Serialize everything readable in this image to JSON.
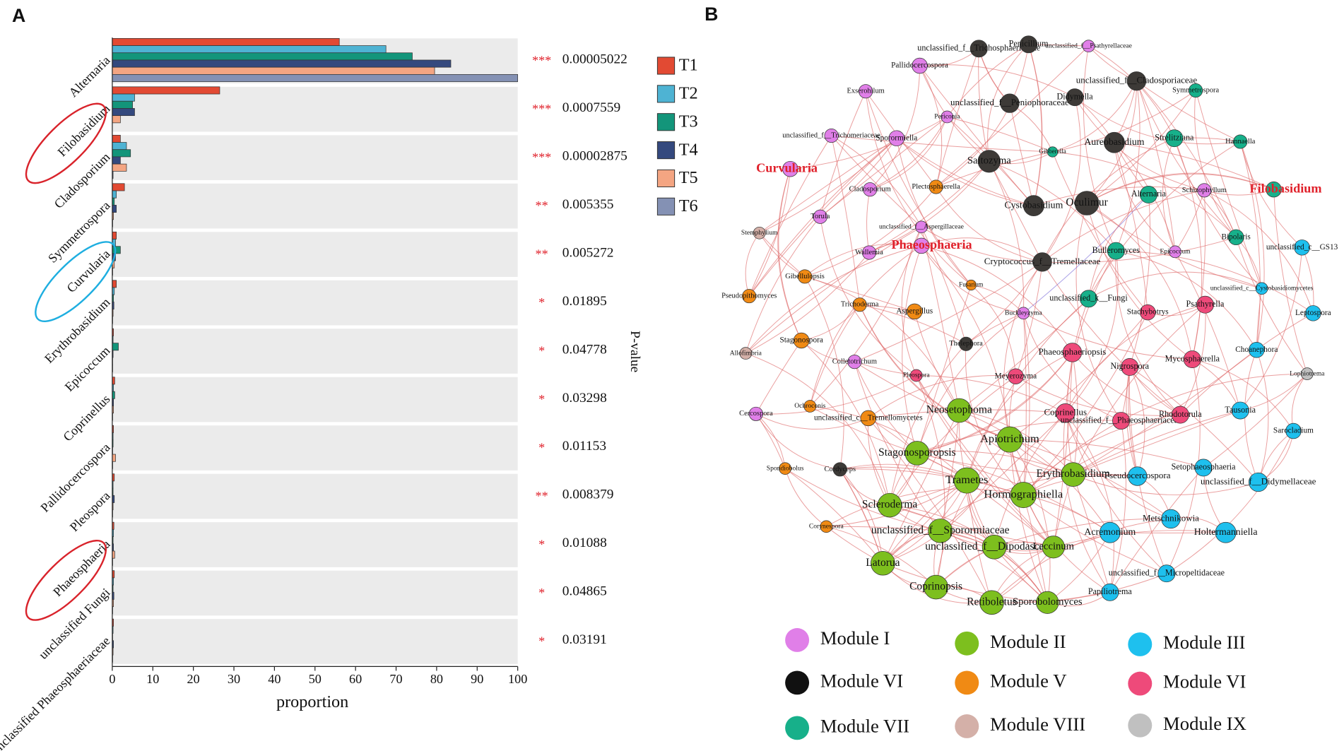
{
  "chart_data": {
    "type": "bar",
    "orientation": "horizontal",
    "panel_label": "A",
    "categories": [
      "Alternaria",
      "Filobasidium",
      "Cladosporium",
      "Symmetrospora",
      "Curvularia",
      "Erythrobasidium",
      "Epicoccum",
      "Coprinellus",
      "Pallidocercospora",
      "Pleospora",
      "Phaeosphaeria",
      "unclassified Fungi",
      "unclassified Phaeosphaeriaceae"
    ],
    "series": [
      {
        "name": "T1",
        "color": "#e24a33",
        "values": [
          56,
          26.5,
          2,
          3,
          1,
          1,
          0.3,
          0.6,
          0.3,
          0.5,
          0.4,
          0.5,
          0.3
        ]
      },
      {
        "name": "T2",
        "color": "#4eb3d3",
        "values": [
          67.5,
          5.5,
          3.5,
          1,
          0.8,
          0.5,
          0.2,
          0.3,
          0.2,
          0.2,
          0.3,
          0.3,
          0.2
        ]
      },
      {
        "name": "T3",
        "color": "#13957a",
        "values": [
          74,
          5,
          4.5,
          0.5,
          2,
          0.3,
          1.5,
          0.6,
          0.2,
          0.2,
          0.2,
          0.2,
          0.1
        ]
      },
      {
        "name": "T4",
        "color": "#34497e",
        "values": [
          83.5,
          5.5,
          2,
          1,
          0.8,
          0.4,
          0.2,
          0.3,
          0.1,
          0.5,
          0.3,
          0.4,
          0.3
        ]
      },
      {
        "name": "T5",
        "color": "#f4a582",
        "values": [
          79.5,
          2,
          3.5,
          0.3,
          0.5,
          0.2,
          0.1,
          0.3,
          0.8,
          0.2,
          0.6,
          0.3,
          0.2
        ]
      },
      {
        "name": "T6",
        "color": "#8491b4",
        "values": [
          100,
          0,
          0.2,
          0.1,
          0.1,
          0.1,
          0.1,
          0.1,
          0.1,
          0.1,
          0.1,
          0.1,
          0.1
        ]
      }
    ],
    "xlim": [
      0,
      100
    ],
    "xticks": [
      0,
      10,
      20,
      30,
      40,
      50,
      60,
      70,
      80,
      90,
      100
    ],
    "xlabel": "proportion",
    "p_value_label": "P-value",
    "significance": [
      "***",
      "***",
      "***",
      "**",
      "**",
      "*",
      "*",
      "*",
      "*",
      "**",
      "*",
      "*",
      "*"
    ],
    "p_values": [
      "0.00005022",
      "0.0007559",
      "0.00002875",
      "0.005355",
      "0.005272",
      "0.01895",
      "0.04778",
      "0.03298",
      "0.01153",
      "0.008379",
      "0.01088",
      "0.04865",
      "0.03191"
    ]
  },
  "network": {
    "panel_label": "B",
    "legend": [
      {
        "name": "Module I",
        "color": "#e07fe8"
      },
      {
        "name": "Module II",
        "color": "#7dbf1e"
      },
      {
        "name": "Module III",
        "color": "#1ec0ee"
      },
      {
        "name": "Module VI",
        "color": "#111111"
      },
      {
        "name": "Module V",
        "color": "#f08a14"
      },
      {
        "name": "Module VI",
        "color": "#ee4a7a"
      },
      {
        "name": "Module VII",
        "color": "#17b08a"
      },
      {
        "name": "Module VIII",
        "color": "#d4b0a8"
      },
      {
        "name": "Module IX",
        "color": "#c0c0c0"
      }
    ],
    "nodes": [
      {
        "label": "Pallidocercospora",
        "color": "#e07fe8"
      },
      {
        "label": "unclassified_f__Trichosphaeriaceae",
        "color": "#3d3a37"
      },
      {
        "label": "Penicillium",
        "color": "#3d3a37"
      },
      {
        "label": "unclassified_f__Psathyrellaceae",
        "color": "#e07fe8"
      },
      {
        "label": "Exserohilum",
        "color": "#e07fe8"
      },
      {
        "label": "unclassified_f__Cladosporiaceae",
        "color": "#3d3a37"
      },
      {
        "label": "Symmetrospora",
        "color": "#17b08a"
      },
      {
        "label": "unclassified_f__Peniophoraceae",
        "color": "#3d3a37"
      },
      {
        "label": "Didymella",
        "color": "#3d3a37"
      },
      {
        "label": "Periconia",
        "color": "#e07fe8"
      },
      {
        "label": "unclassified_f__Trichomeriaceae",
        "color": "#e07fe8"
      },
      {
        "label": "Sporormiella",
        "color": "#e07fe8"
      },
      {
        "label": "Aureobasidium",
        "color": "#3d3a37"
      },
      {
        "label": "Strelitziana",
        "color": "#17b08a"
      },
      {
        "label": "Hannaella",
        "color": "#17b08a"
      },
      {
        "label": "Gibberella",
        "color": "#17b08a"
      },
      {
        "label": "Curvularia",
        "color": "#e07fe8"
      },
      {
        "label": "Saitozyma",
        "color": "#3d3a37"
      },
      {
        "label": "Plectosphaerella",
        "color": "#f08a14"
      },
      {
        "label": "Cladosporium",
        "color": "#e07fe8"
      },
      {
        "label": "Cystobasidium",
        "color": "#3d3a37"
      },
      {
        "label": "Oculimur",
        "color": "#3d3a37"
      },
      {
        "label": "Alternaria",
        "color": "#17b08a"
      },
      {
        "label": "Schizophyllum",
        "color": "#e07fe8"
      },
      {
        "label": "Filobasidium",
        "color": "#17b08a"
      },
      {
        "label": "Torula",
        "color": "#e07fe8"
      },
      {
        "label": "unclassified_f__Aspergillaceae",
        "color": "#e07fe8"
      },
      {
        "label": "Stemphylium",
        "color": "#d4b0a8"
      },
      {
        "label": "Bipolaris",
        "color": "#17b08a"
      },
      {
        "label": "Wallemia",
        "color": "#e07fe8"
      },
      {
        "label": "Phaeosphaeria",
        "color": "#e07fe8"
      },
      {
        "label": "Bulleromyces",
        "color": "#17b08a"
      },
      {
        "label": "Epicoccum",
        "color": "#e07fe8"
      },
      {
        "label": "unclassified_c__GS13",
        "color": "#1ec0ee"
      },
      {
        "label": "Cryptococcus_f__Tremellaceae",
        "color": "#3d3a37"
      },
      {
        "label": "Gibellulopsis",
        "color": "#f08a14"
      },
      {
        "label": "Fusarium",
        "color": "#f08a14"
      },
      {
        "label": "unclassified_c__Cystobasidiomycetes",
        "color": "#1ec0ee"
      },
      {
        "label": "Pseudopithomyces",
        "color": "#f08a14"
      },
      {
        "label": "unclassified_k__Fungi",
        "color": "#17b08a"
      },
      {
        "label": "Trichoderma",
        "color": "#f08a14"
      },
      {
        "label": "Aspergillus",
        "color": "#f08a14"
      },
      {
        "label": "Buckleyzyma",
        "color": "#e07fe8"
      },
      {
        "label": "Stachybotrys",
        "color": "#ee4a7a"
      },
      {
        "label": "Psathyrella",
        "color": "#ee4a7a"
      },
      {
        "label": "Leptospora",
        "color": "#1ec0ee"
      },
      {
        "label": "Stagonospora",
        "color": "#f08a14"
      },
      {
        "label": "Thelephora",
        "color": "#3d3a37"
      },
      {
        "label": "Phaeosphaeriopsis",
        "color": "#ee4a7a"
      },
      {
        "label": "Allofimbria",
        "color": "#d4b0a8"
      },
      {
        "label": "Choanephora",
        "color": "#1ec0ee"
      },
      {
        "label": "Mycosphaerella",
        "color": "#ee4a7a"
      },
      {
        "label": "Lophiotrema",
        "color": "#c0c0c0"
      },
      {
        "label": "Colletotrichum",
        "color": "#e07fe8"
      },
      {
        "label": "Pleospora",
        "color": "#ee4a7a"
      },
      {
        "label": "Meyerozyma",
        "color": "#ee4a7a"
      },
      {
        "label": "Nigrospora",
        "color": "#ee4a7a"
      },
      {
        "label": "Neosetophoma",
        "color": "#7dbf1e"
      },
      {
        "label": "Coprinellus",
        "color": "#ee4a7a"
      },
      {
        "label": "unclassified_f__Phaeosphaeriaceae",
        "color": "#ee4a7a"
      },
      {
        "label": "Rhodotorula",
        "color": "#ee4a7a"
      },
      {
        "label": "Tausonia",
        "color": "#1ec0ee"
      },
      {
        "label": "Cercospora",
        "color": "#e07fe8"
      },
      {
        "label": "Ochroconis",
        "color": "#f08a14"
      },
      {
        "label": "unclassified_c__Tremellomycetes",
        "color": "#f08a14"
      },
      {
        "label": "Apiotrichum",
        "color": "#7dbf1e"
      },
      {
        "label": "Sarocladium",
        "color": "#1ec0ee"
      },
      {
        "label": "Stagonosporopsis",
        "color": "#7dbf1e"
      },
      {
        "label": "Spondiobolus",
        "color": "#f08a14"
      },
      {
        "label": "Cordyceps",
        "color": "#3d3a37"
      },
      {
        "label": "Trametes",
        "color": "#7dbf1e"
      },
      {
        "label": "Erythrobasidium",
        "color": "#7dbf1e"
      },
      {
        "label": "Pseudocercospora",
        "color": "#1ec0ee"
      },
      {
        "label": "Setophaeosphaeria",
        "color": "#1ec0ee"
      },
      {
        "label": "unclassified_f__Didymellaceae",
        "color": "#1ec0ee"
      },
      {
        "label": "Hormographiella",
        "color": "#7dbf1e"
      },
      {
        "label": "Scleroderma",
        "color": "#7dbf1e"
      },
      {
        "label": "Corynespora",
        "color": "#f08a14"
      },
      {
        "label": "unclassified_f__Sporormiaceae",
        "color": "#7dbf1e"
      },
      {
        "label": "Metschnikowia",
        "color": "#1ec0ee"
      },
      {
        "label": "Acremonium",
        "color": "#1ec0ee"
      },
      {
        "label": "Holtermanniella",
        "color": "#1ec0ee"
      },
      {
        "label": "unclassified_f__Dipodascaceae",
        "color": "#7dbf1e"
      },
      {
        "label": "Leccinum",
        "color": "#7dbf1e"
      },
      {
        "label": "Latorua",
        "color": "#7dbf1e"
      },
      {
        "label": "unclassified_f__Micropeltidaceae",
        "color": "#1ec0ee"
      },
      {
        "label": "Coprinopsis",
        "color": "#7dbf1e"
      },
      {
        "label": "Papiliotrema",
        "color": "#1ec0ee"
      },
      {
        "label": "Retiboletus",
        "color": "#7dbf1e"
      },
      {
        "label": "Sporobolomyces",
        "color": "#7dbf1e"
      }
    ]
  }
}
